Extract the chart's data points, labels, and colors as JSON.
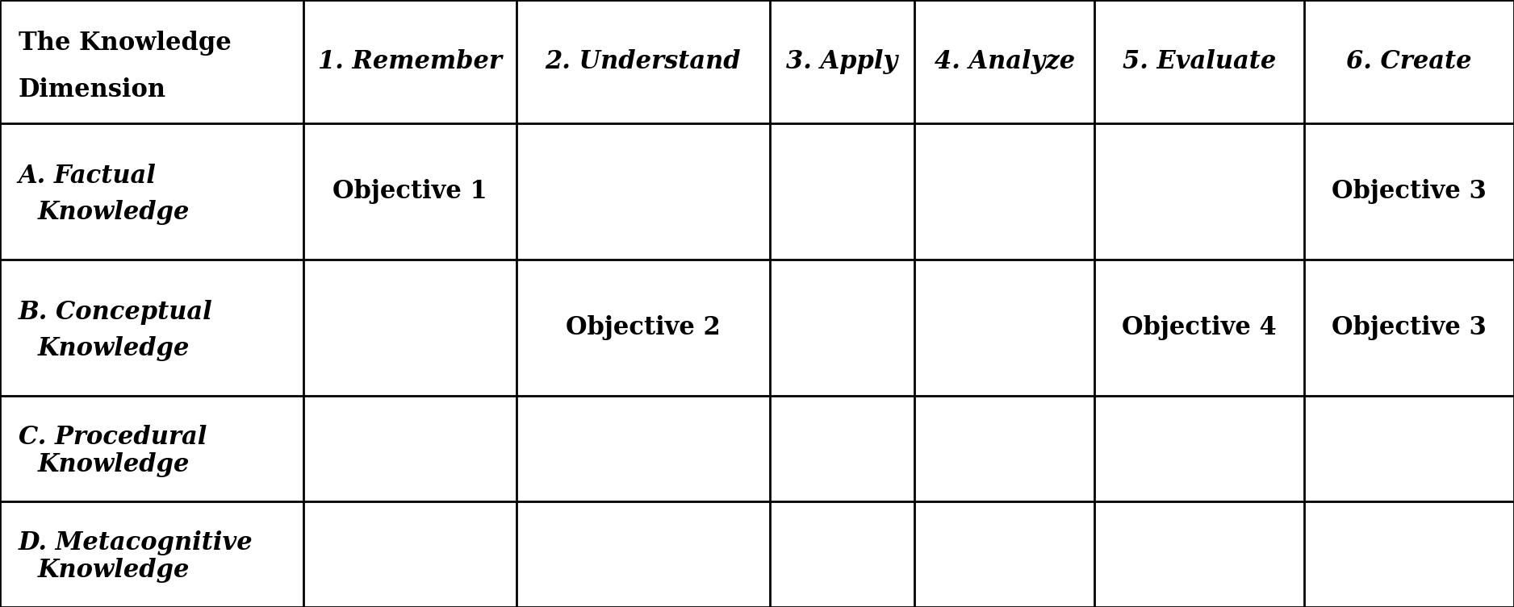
{
  "col_header_texts": [
    "The Knowledge\nDimension",
    "1. Remember",
    "2. Understand",
    "3. Apply",
    "4. Analyze",
    "5. Evaluate",
    "6. Create"
  ],
  "col_header_italic": [
    false,
    true,
    true,
    true,
    true,
    true,
    true
  ],
  "row_header_line1": [
    "A. Factual",
    "B. Conceptual",
    "C. Procedural",
    "D. Metacognitive"
  ],
  "row_header_line2": [
    "Knowledge",
    "Knowledge",
    "Knowledge",
    "Knowledge"
  ],
  "cell_content": [
    [
      "Objective 1",
      "",
      "",
      "",
      "",
      "Objective 3"
    ],
    [
      "",
      "Objective 2",
      "",
      "",
      "Objective 4",
      "Objective 3"
    ],
    [
      "",
      "",
      "",
      "",
      "",
      ""
    ],
    [
      "",
      "",
      "",
      "",
      "",
      ""
    ]
  ],
  "col_rel_widths": [
    1.85,
    1.3,
    1.55,
    0.88,
    1.1,
    1.28,
    1.28
  ],
  "row_rel_heights": [
    1.4,
    1.55,
    1.55,
    1.2,
    1.2
  ],
  "bg_color": "#ffffff",
  "line_color": "#000000",
  "text_color": "#000000",
  "font_size_col_header": 22,
  "font_size_row_header": 22,
  "font_size_cell": 22,
  "line_width": 2.0
}
